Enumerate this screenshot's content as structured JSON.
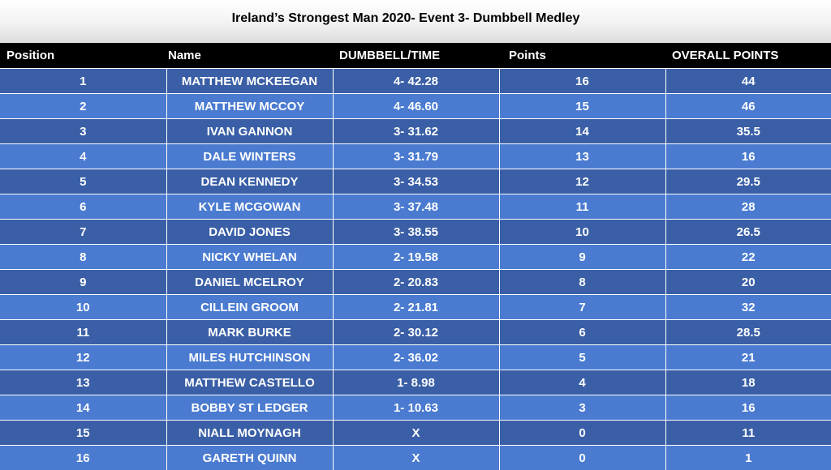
{
  "title": "Ireland’s Strongest Man 2020- Event 3- Dumbbell Medley",
  "headers": {
    "position": "Position",
    "name": "Name",
    "dumbbell_time": "DUMBBELL/TIME",
    "points": "Points",
    "overall_points": "OVERALL POINTS"
  },
  "rows": [
    {
      "position": "1",
      "name": "MATTHEW MCKEEGAN",
      "dumbbell_time": "4- 42.28",
      "points": "16",
      "overall_points": "44"
    },
    {
      "position": "2",
      "name": "MATTHEW MCCOY",
      "dumbbell_time": "4- 46.60",
      "points": "15",
      "overall_points": "46"
    },
    {
      "position": "3",
      "name": "IVAN GANNON",
      "dumbbell_time": "3- 31.62",
      "points": "14",
      "overall_points": "35.5"
    },
    {
      "position": "4",
      "name": "DALE WINTERS",
      "dumbbell_time": "3- 31.79",
      "points": "13",
      "overall_points": "16"
    },
    {
      "position": "5",
      "name": "DEAN KENNEDY",
      "dumbbell_time": "3- 34.53",
      "points": "12",
      "overall_points": "29.5"
    },
    {
      "position": "6",
      "name": "KYLE MCGOWAN",
      "dumbbell_time": "3- 37.48",
      "points": "11",
      "overall_points": "28"
    },
    {
      "position": "7",
      "name": "DAVID JONES",
      "dumbbell_time": "3- 38.55",
      "points": "10",
      "overall_points": "26.5"
    },
    {
      "position": "8",
      "name": "NICKY WHELAN",
      "dumbbell_time": "2- 19.58",
      "points": "9",
      "overall_points": "22"
    },
    {
      "position": "9",
      "name": "DANIEL MCELROY",
      "dumbbell_time": "2- 20.83",
      "points": "8",
      "overall_points": "20"
    },
    {
      "position": "10",
      "name": "CILLEIN GROOM",
      "dumbbell_time": "2- 21.81",
      "points": "7",
      "overall_points": "32"
    },
    {
      "position": "11",
      "name": "MARK BURKE",
      "dumbbell_time": "2- 30.12",
      "points": "6",
      "overall_points": "28.5"
    },
    {
      "position": "12",
      "name": "MILES HUTCHINSON",
      "dumbbell_time": "2- 36.02",
      "points": "5",
      "overall_points": "21"
    },
    {
      "position": "13",
      "name": "MATTHEW CASTELLO",
      "dumbbell_time": "1- 8.98",
      "points": "4",
      "overall_points": "18"
    },
    {
      "position": "14",
      "name": "BOBBY ST LEDGER",
      "dumbbell_time": "1- 10.63",
      "points": "3",
      "overall_points": "16"
    },
    {
      "position": "15",
      "name": "NIALL MOYNAGH",
      "dumbbell_time": "X",
      "points": "0",
      "overall_points": "11"
    },
    {
      "position": "16",
      "name": "GARETH QUINN",
      "dumbbell_time": "X",
      "points": "0",
      "overall_points": "1"
    }
  ],
  "colors": {
    "header_bg": "#000000",
    "row_dark": "#3a5fa6",
    "row_light": "#4a7bd0",
    "text": "#ffffff"
  }
}
